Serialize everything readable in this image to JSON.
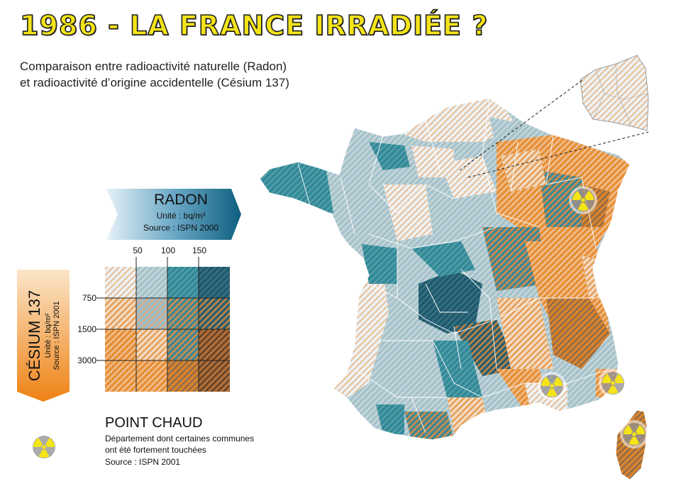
{
  "title": "1986 - LA FRANCE IRRADIÉE ?",
  "subtitle_line1": "Comparaison entre radioactivité naturelle (Radon)",
  "subtitle_line2": "et radioactivité d’origine accidentelle (Césium 137)",
  "radon": {
    "title": "RADON",
    "unit": "Unité : bq/m³",
    "source": "Source : ISPN 2000",
    "ticks": [
      "50",
      "100",
      "150"
    ]
  },
  "cesium": {
    "title": "CÉSIUM 137",
    "unit": "Unité : bq/m²",
    "source": "Source : ISPN 2001",
    "ticks": [
      "750",
      "1500",
      "3000"
    ]
  },
  "hotspot": {
    "title": "POINT CHAUD",
    "line1": "Département dont certaines communes",
    "line2": "ont été fortement touchées",
    "line3": "Source : ISPN 2001",
    "icon": "radiation-trefoil-icon"
  },
  "colors": {
    "radon_levels": [
      "#e4eef0",
      "#9ec0cc",
      "#3a8a98",
      "#1e5b6e"
    ],
    "cesium_levels": [
      "#f2efe9",
      "#eed5bd",
      "#e8a462",
      "#e07f1f"
    ],
    "accent_yellow": "#f4e418"
  }
}
